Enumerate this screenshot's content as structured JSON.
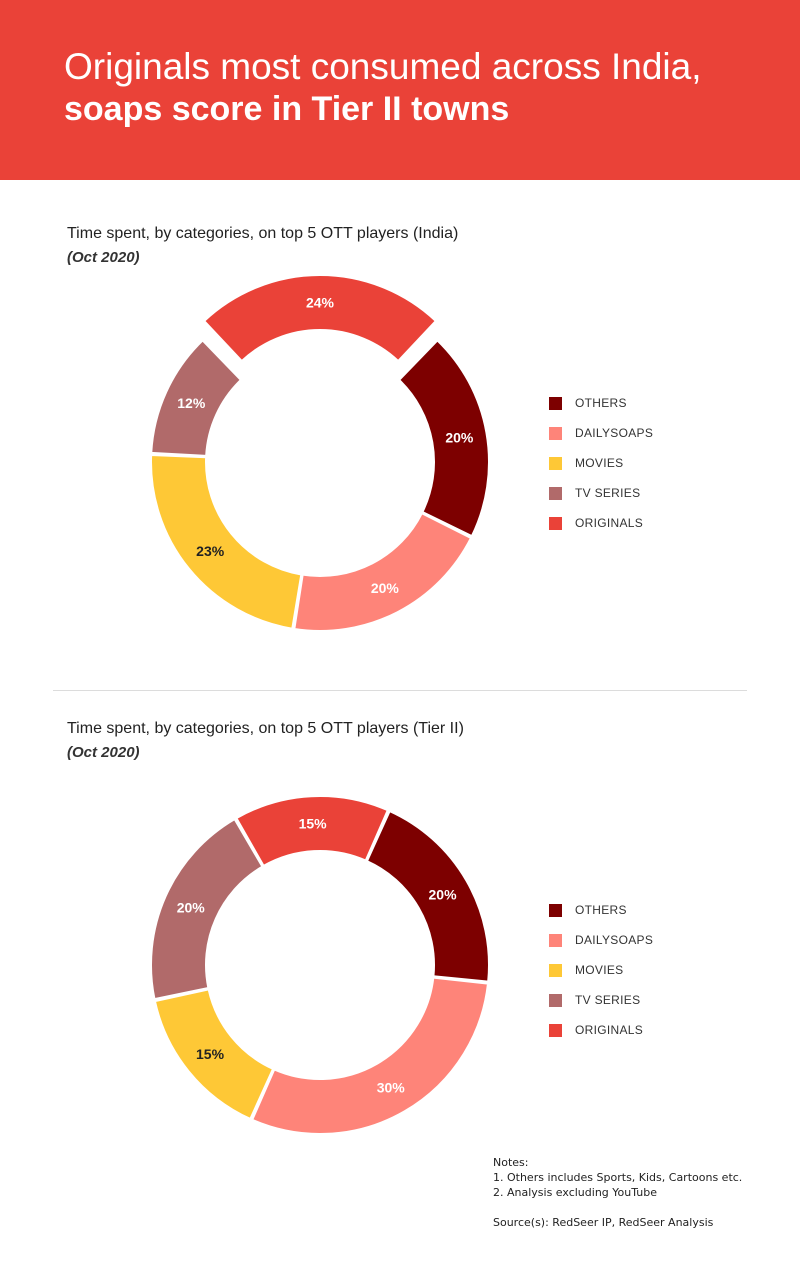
{
  "header": {
    "title_line1": "Originals most consumed across India,",
    "title_line2": "soaps score in Tier II towns"
  },
  "colors": {
    "header_bg": "#ea4238",
    "Others": "#7d0000",
    "DailySoaps": "#fe8479",
    "Movies": "#fec836",
    "TV Series": "#b16a6a",
    "Originals": "#ea4238"
  },
  "chart_data": [
    {
      "type": "donut",
      "title": "Time spent, by categories, on top 5 OTT players (India)",
      "subtitle": "(Oct 2020)",
      "slices": [
        {
          "name": "Originals",
          "value": 24,
          "label": "24%",
          "exploded": true
        },
        {
          "name": "Others",
          "value": 20,
          "label": "20%"
        },
        {
          "name": "DailySoaps",
          "value": 20,
          "label": "20%"
        },
        {
          "name": "Movies",
          "value": 23,
          "label": "23%"
        },
        {
          "name": "TV Series",
          "value": 12,
          "label": "12%"
        }
      ],
      "legend": [
        "OTHERS",
        "DAILYSOAPS",
        "MOVIES",
        "TV SERIES",
        "ORIGINALS"
      ],
      "legend_position": "right"
    },
    {
      "type": "donut",
      "title": "Time spent, by categories, on top 5 OTT players (Tier II)",
      "subtitle": "(Oct 2020)",
      "slices": [
        {
          "name": "Originals",
          "value": 15,
          "label": "15%"
        },
        {
          "name": "Others",
          "value": 20,
          "label": "20%"
        },
        {
          "name": "DailySoaps",
          "value": 30,
          "label": "30%"
        },
        {
          "name": "Movies",
          "value": 15,
          "label": "15%"
        },
        {
          "name": "TV Series",
          "value": 20,
          "label": "20%"
        }
      ],
      "legend": [
        "OTHERS",
        "DAILYSOAPS",
        "MOVIES",
        "TV SERIES",
        "ORIGINALS"
      ],
      "legend_position": "right"
    }
  ],
  "notes": {
    "heading": "Notes:",
    "items": [
      "1. Others includes Sports, Kids, Cartoons etc.",
      "2. Analysis excluding YouTube"
    ]
  },
  "source": "Source(s): RedSeer IP, RedSeer Analysis"
}
